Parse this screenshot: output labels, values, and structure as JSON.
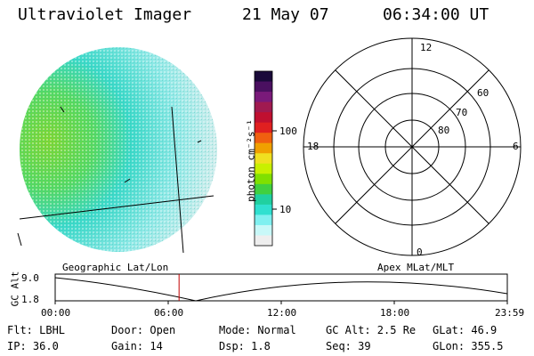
{
  "header": {
    "instrument": "Ultraviolet Imager",
    "date": "21 May 07",
    "time": "06:34:00 UT"
  },
  "colorbar": {
    "unit_label": "photon cm⁻²s⁻¹",
    "ticks": [
      "100",
      "10"
    ],
    "colors": [
      "#1a0a3a",
      "#4a1060",
      "#7a1a7a",
      "#a01a50",
      "#c01030",
      "#e02020",
      "#f06010",
      "#f0a000",
      "#f0e020",
      "#c8f000",
      "#80e000",
      "#40d040",
      "#20d0a0",
      "#30e0d0",
      "#80f0f0",
      "#c8f8f8",
      "#eeeeee"
    ]
  },
  "polar": {
    "mlt_labels": [
      "12",
      "18",
      "6",
      "0"
    ],
    "lat_labels": [
      "60",
      "70",
      "80"
    ]
  },
  "timeline": {
    "ylabel": "GC Alt",
    "yticks": [
      "9.0",
      "1.8"
    ],
    "left_label": "Geographic Lat/Lon",
    "right_label": "Apex MLat/MLT",
    "xticks": [
      "00:00",
      "06:00",
      "12:00",
      "18:00",
      "23:59"
    ],
    "current_time_fraction": 0.274
  },
  "info": {
    "row1": [
      "Flt: LBHL",
      "Door: Open",
      "Mode: Normal",
      "GC Alt: 2.5 Re",
      "GLat:  46.9"
    ],
    "row2": [
      "IP: 36.0",
      "Gain: 14",
      "Dsp:    1.8",
      "Seq: 39",
      "GLon: 355.5"
    ]
  }
}
